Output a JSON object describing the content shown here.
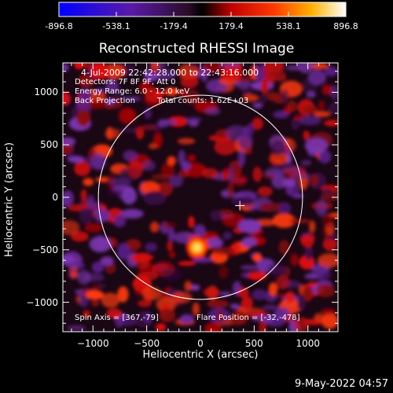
{
  "chart_data": {
    "type": "heatmap",
    "title": "Reconstructed RHESSI Image",
    "xlabel": "Heliocentric X (arcsec)",
    "ylabel": "Heliocentric Y (arcsec)",
    "xlim": [
      -1280,
      1280
    ],
    "ylim": [
      -1280,
      1280
    ],
    "xticks": [
      -1000,
      -500,
      0,
      500,
      1000
    ],
    "yticks": [
      -1000,
      -500,
      0,
      500,
      1000
    ],
    "colorbar": {
      "range": [
        -896.8,
        896.8
      ],
      "ticks": [
        "-896.8",
        "-538.1",
        "-179.4",
        "179.4",
        "538.1",
        "896.8"
      ]
    },
    "annotations": [
      "4-Jul-2009 22:42:28.000 to 22:43:16.000",
      "Detectors: 7F 8F 9F, Att 0",
      "Energy Range: 6.0 - 12.0 keV",
      "Back Projection",
      "Total counts: 1.62E+03"
    ],
    "spin_axis_label": "Spin Axis = [367,-79]",
    "flare_position_label": "Flare Position = [-32,-478]",
    "solar_limb_radius": 950,
    "spin_axis": [
      367,
      -79
    ],
    "flare_position": [
      -32,
      -478
    ]
  },
  "footer": {
    "date": "9-May-2022 04:57"
  }
}
